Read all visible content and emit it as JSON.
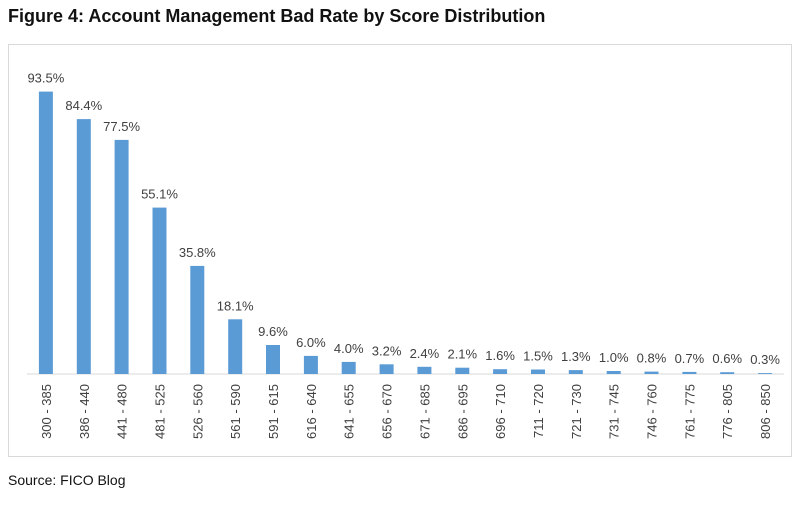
{
  "figure": {
    "title": "Figure 4: Account Management Bad Rate by Score Distribution",
    "source": "Source: FICO Blog"
  },
  "colors": {
    "bar": "#5B9BD5",
    "axis": "#d9d9d9",
    "text": "#404040"
  },
  "chart_data": {
    "type": "bar",
    "title": "",
    "xlabel": "",
    "ylabel": "",
    "grid": false,
    "legend": "none",
    "ylim": [
      0,
      100
    ],
    "categories": [
      "300 - 385",
      "386 - 440",
      "441 - 480",
      "481 - 525",
      "526 - 560",
      "561 - 590",
      "591 - 615",
      "616 - 640",
      "641 - 655",
      "656 - 670",
      "671 - 685",
      "686 - 695",
      "696 - 710",
      "711 - 720",
      "721 - 730",
      "731 - 745",
      "746 - 760",
      "761 - 775",
      "776 - 805",
      "806 - 850"
    ],
    "values": [
      93.5,
      84.4,
      77.5,
      55.1,
      35.8,
      18.1,
      9.6,
      6.0,
      4.0,
      3.2,
      2.4,
      2.1,
      1.6,
      1.5,
      1.3,
      1.0,
      0.8,
      0.7,
      0.6,
      0.3
    ],
    "data_labels": [
      "93.5%",
      "84.4%",
      "77.5%",
      "55.1%",
      "35.8%",
      "18.1%",
      "9.6%",
      "6.0%",
      "4.0%",
      "3.2%",
      "2.4%",
      "2.1%",
      "1.6%",
      "1.5%",
      "1.3%",
      "1.0%",
      "0.8%",
      "0.7%",
      "0.6%",
      "0.3%"
    ]
  }
}
